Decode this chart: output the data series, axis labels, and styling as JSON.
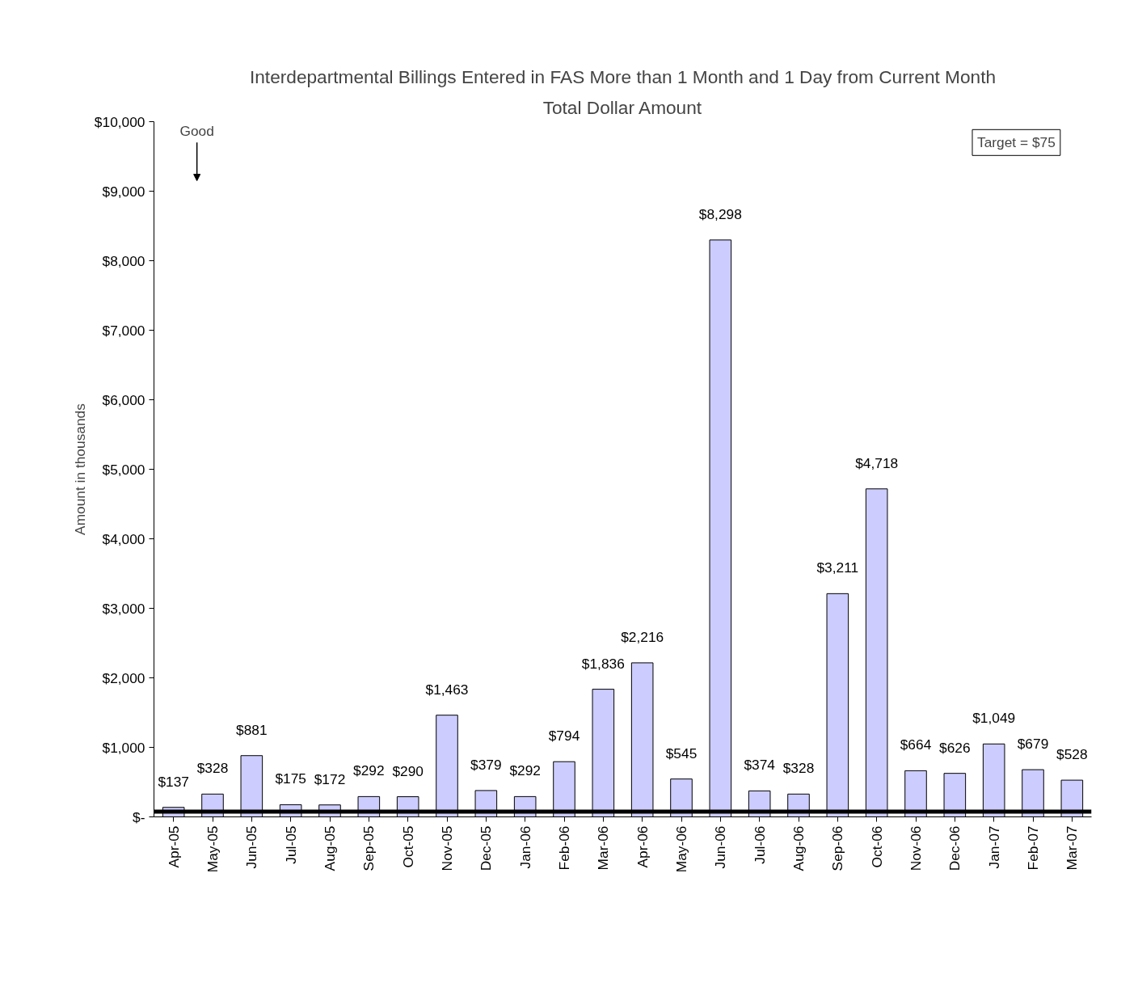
{
  "chart_data": {
    "type": "bar",
    "title": "Interdepartmental Billings Entered in FAS More than 1 Month and 1 Day from Current Month",
    "subtitle": "Total Dollar Amount",
    "ylabel": "Amount in thousands",
    "categories": [
      "Apr-05",
      "May-05",
      "Jun-05",
      "Jul-05",
      "Aug-05",
      "Sep-05",
      "Oct-05",
      "Nov-05",
      "Dec-05",
      "Jan-06",
      "Feb-06",
      "Mar-06",
      "Apr-06",
      "May-06",
      "Jun-06",
      "Jul-06",
      "Aug-06",
      "Sep-06",
      "Oct-06",
      "Nov-06",
      "Dec-06",
      "Jan-07",
      "Feb-07",
      "Mar-07"
    ],
    "values": [
      137,
      328,
      881,
      175,
      172,
      292,
      290,
      1463,
      379,
      292,
      794,
      1836,
      2216,
      545,
      8298,
      374,
      328,
      3211,
      4718,
      664,
      626,
      1049,
      679,
      528
    ],
    "value_labels": [
      "$137",
      "$328",
      "$881",
      "$175",
      "$172",
      "$292",
      "$290",
      "$1,463",
      "$379",
      "$292",
      "$794",
      "$1,836",
      "$2,216",
      "$545",
      "$8,298",
      "$374",
      "$328",
      "$3,211",
      "$4,718",
      "$664",
      "$626",
      "$1,049",
      "$679",
      "$528"
    ],
    "color": "#ccccff",
    "ylim": [
      0,
      10000
    ],
    "yticks": [
      {
        "value": 0,
        "label": "$-"
      },
      {
        "value": 1000,
        "label": "$1,000"
      },
      {
        "value": 2000,
        "label": "$2,000"
      },
      {
        "value": 3000,
        "label": "$3,000"
      },
      {
        "value": 4000,
        "label": "$4,000"
      },
      {
        "value": 5000,
        "label": "$5,000"
      },
      {
        "value": 6000,
        "label": "$6,000"
      },
      {
        "value": 7000,
        "label": "$7,000"
      },
      {
        "value": 8000,
        "label": "$8,000"
      },
      {
        "value": 9000,
        "label": "$9,000"
      },
      {
        "value": 10000,
        "label": "$10,000"
      }
    ],
    "ref_lines": [
      {
        "axis": "y",
        "value": 75,
        "color": "#000000"
      }
    ],
    "annotations": [
      "Good",
      "Target = $75"
    ],
    "grid": false
  }
}
